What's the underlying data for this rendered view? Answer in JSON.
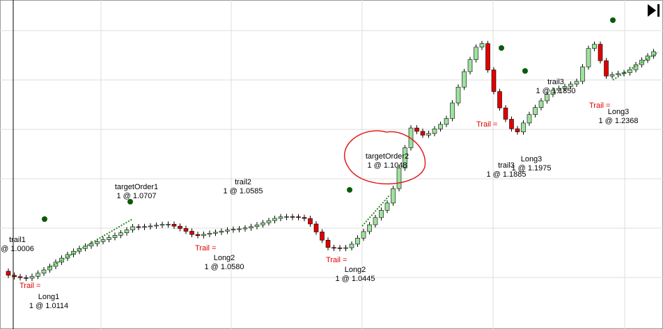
{
  "labels": [
    {
      "name": "trail1",
      "price": "@ 1.0006"
    },
    {
      "name": "Long1",
      "price": "1 @ 1.0114"
    },
    {
      "name": "targetOrder1",
      "price": "1 @ 1.0707"
    },
    {
      "name": "trail2",
      "price": "1 @ 1.0585"
    },
    {
      "name": "Long2",
      "price": "1 @ 1.0580"
    },
    {
      "name": "Long2",
      "price": "1 @ 1.0445"
    },
    {
      "name": "targetOrder2",
      "price": "1 @ 1.1048"
    },
    {
      "name": "trail3",
      "price": "1 @ 1.1850"
    },
    {
      "name": "Long3",
      "price": "1 @ 1.2368"
    },
    {
      "name": "Long3",
      "price": "1 @ 1.1975"
    },
    {
      "name": "trail3",
      "price": "1 @ 1.1885"
    }
  ],
  "trail_label": "Trail = "
}
